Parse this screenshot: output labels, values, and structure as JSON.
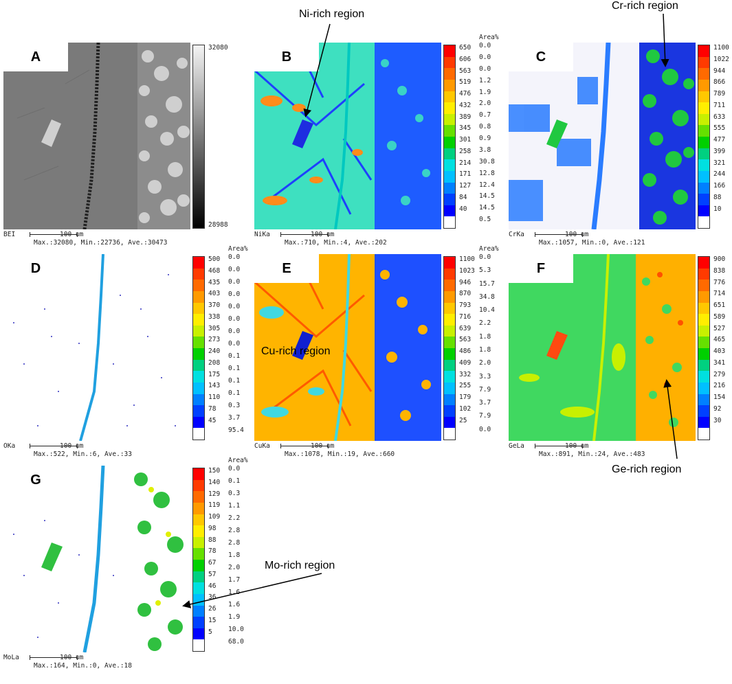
{
  "colors": {
    "legend": [
      "#ff0000",
      "#ff3a00",
      "#ff6a00",
      "#ff9a00",
      "#ffc800",
      "#ffee00",
      "#c8f000",
      "#66e000",
      "#00d000",
      "#00d080",
      "#00e0e0",
      "#00c0ff",
      "#0080ff",
      "#0040ff",
      "#0000ff",
      "#ffffff"
    ],
    "gray_top": "#f0f0f0",
    "gray_bottom": "#000000"
  },
  "panels": [
    {
      "label": "A",
      "element": "BEI",
      "scale": "100 um",
      "stats": "Max.:32080, Min.:22736, Ave.:30473",
      "colormap": "gray",
      "ticks": [
        "32080",
        "28988"
      ],
      "area": []
    },
    {
      "label": "B",
      "element": "NiKa",
      "scale": "100 um",
      "stats": "Max.:710, Min.:4, Ave.:202",
      "colormap": "color",
      "ticks": [
        "650",
        "606",
        "563",
        "519",
        "476",
        "432",
        "389",
        "345",
        "301",
        "258",
        "214",
        "171",
        "127",
        "84",
        "40"
      ],
      "area_header": "Area%",
      "area": [
        "0.0",
        "0.0",
        "0.0",
        "1.2",
        "1.9",
        "2.0",
        "0.7",
        "0.8",
        "0.9",
        "3.8",
        "30.8",
        "12.8",
        "12.4",
        "14.5",
        "14.5",
        "0.5"
      ]
    },
    {
      "label": "C",
      "element": "CrKa",
      "scale": "100 um",
      "stats": "Max.:1057, Min.:0, Ave.:121",
      "colormap": "color",
      "ticks": [
        "1100",
        "1022",
        "944",
        "866",
        "789",
        "711",
        "633",
        "555",
        "477",
        "399",
        "321",
        "244",
        "166",
        "88",
        "10"
      ],
      "area": []
    },
    {
      "label": "D",
      "element": "OKa",
      "scale": "100 um",
      "stats": "Max.:522, Min.:6, Ave.:33",
      "colormap": "color",
      "ticks": [
        "500",
        "468",
        "435",
        "403",
        "370",
        "338",
        "305",
        "273",
        "240",
        "208",
        "175",
        "143",
        "110",
        "78",
        "45"
      ],
      "area_header": "Area%",
      "area": [
        "0.0",
        "0.0",
        "0.0",
        "0.0",
        "0.0",
        "0.0",
        "0.0",
        "0.0",
        "0.1",
        "0.1",
        "0.1",
        "0.1",
        "0.3",
        "3.7",
        "95.4"
      ]
    },
    {
      "label": "E",
      "element": "CuKa",
      "scale": "100 um",
      "stats": "Max.:1078, Min.:19, Ave.:660",
      "colormap": "color",
      "ticks": [
        "1100",
        "1023",
        "946",
        "870",
        "793",
        "716",
        "639",
        "563",
        "486",
        "409",
        "332",
        "255",
        "179",
        "102",
        "25"
      ],
      "area_header": "Area%",
      "area": [
        "0.0",
        "5.3",
        "15.7",
        "34.8",
        "10.4",
        "2.2",
        "1.8",
        "1.8",
        "2.0",
        "3.3",
        "7.9",
        "3.7",
        "7.9",
        "0.0"
      ]
    },
    {
      "label": "F",
      "element": "GeLa",
      "scale": "100 um",
      "stats": "Max.:891, Min.:24, Ave.:483",
      "colormap": "color",
      "ticks": [
        "900",
        "838",
        "776",
        "714",
        "651",
        "589",
        "527",
        "465",
        "403",
        "341",
        "279",
        "216",
        "154",
        "92",
        "30"
      ],
      "area": []
    },
    {
      "label": "G",
      "element": "MoLa",
      "scale": "100 um",
      "stats": "Max.:164, Min.:0, Ave.:18",
      "colormap": "color",
      "ticks": [
        "150",
        "140",
        "129",
        "119",
        "109",
        "98",
        "88",
        "78",
        "67",
        "57",
        "46",
        "36",
        "26",
        "15",
        "5"
      ],
      "area_header": "Area%",
      "area": [
        "0.0",
        "0.1",
        "0.3",
        "1.1",
        "2.2",
        "2.8",
        "2.8",
        "1.8",
        "2.0",
        "1.7",
        "1.6",
        "1.6",
        "1.9",
        "10.0",
        "68.0"
      ]
    }
  ],
  "annotations": {
    "ni": "Ni-rich region",
    "cr": "Cr-rich region",
    "cu": "Cu-rich region",
    "ge": "Ge-rich region",
    "mo": "Mo-rich region"
  }
}
